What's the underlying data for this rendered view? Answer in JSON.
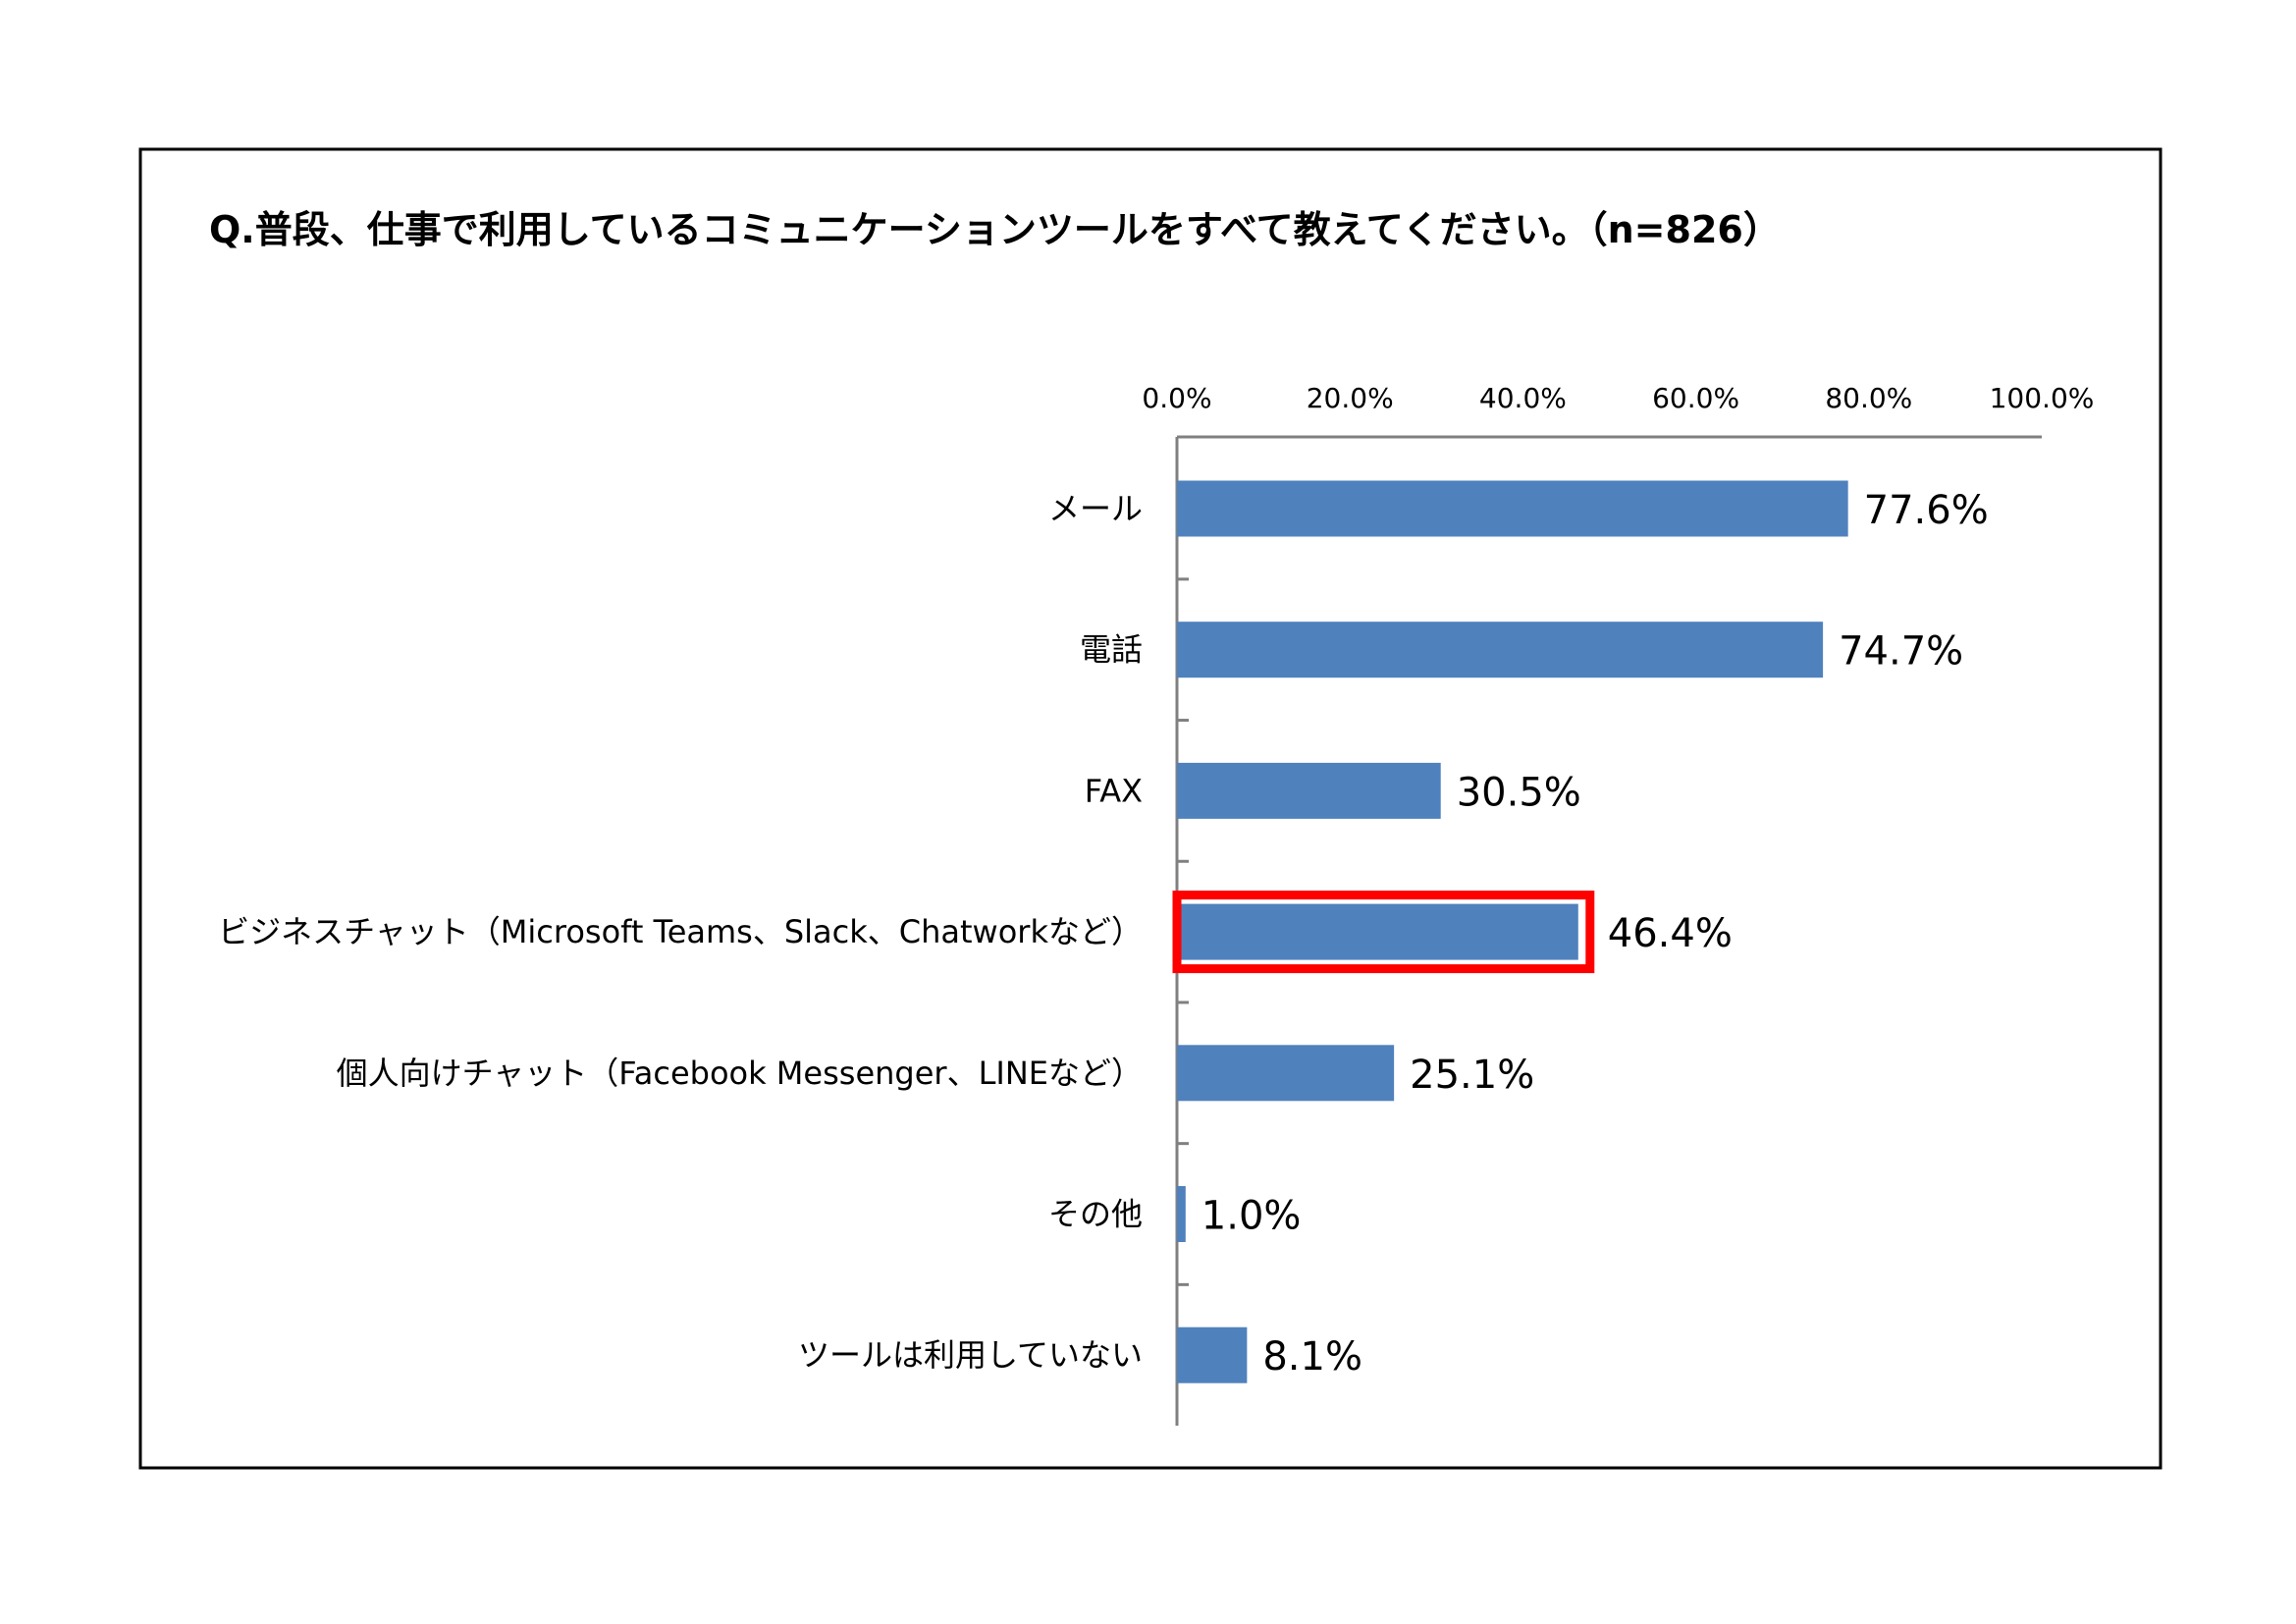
{
  "chart_data": {
    "type": "bar",
    "orientation": "horizontal",
    "title": "Q.普段、仕事で利用しているコミュニケーションツールをすべて教えてください。（n=826）",
    "categories": [
      "メール",
      "電話",
      "FAX",
      "ビジネスチャット（Microsoft Teams、Slack、Chatworkなど）",
      "個人向けチャット（Facebook Messenger、LINEなど）",
      "その他",
      "ツールは利用していない"
    ],
    "values": [
      77.6,
      74.7,
      30.5,
      46.4,
      25.1,
      1.0,
      8.1
    ],
    "value_labels": [
      "77.6%",
      "74.7%",
      "30.5%",
      "46.4%",
      "25.1%",
      "1.0%",
      "8.1%"
    ],
    "x_ticks": [
      0,
      20,
      40,
      60,
      80,
      100
    ],
    "x_tick_labels": [
      "0.0%",
      "20.0%",
      "40.0%",
      "60.0%",
      "80.0%",
      "100.0%"
    ],
    "xlim": [
      0,
      100
    ],
    "axis_position": "top",
    "highlighted_category": "ビジネスチャット（Microsoft Teams、Slack、Chatworkなど）",
    "colors": {
      "bar": "#4f81bd",
      "highlight": "#ff0000",
      "axis": "#808080"
    }
  }
}
